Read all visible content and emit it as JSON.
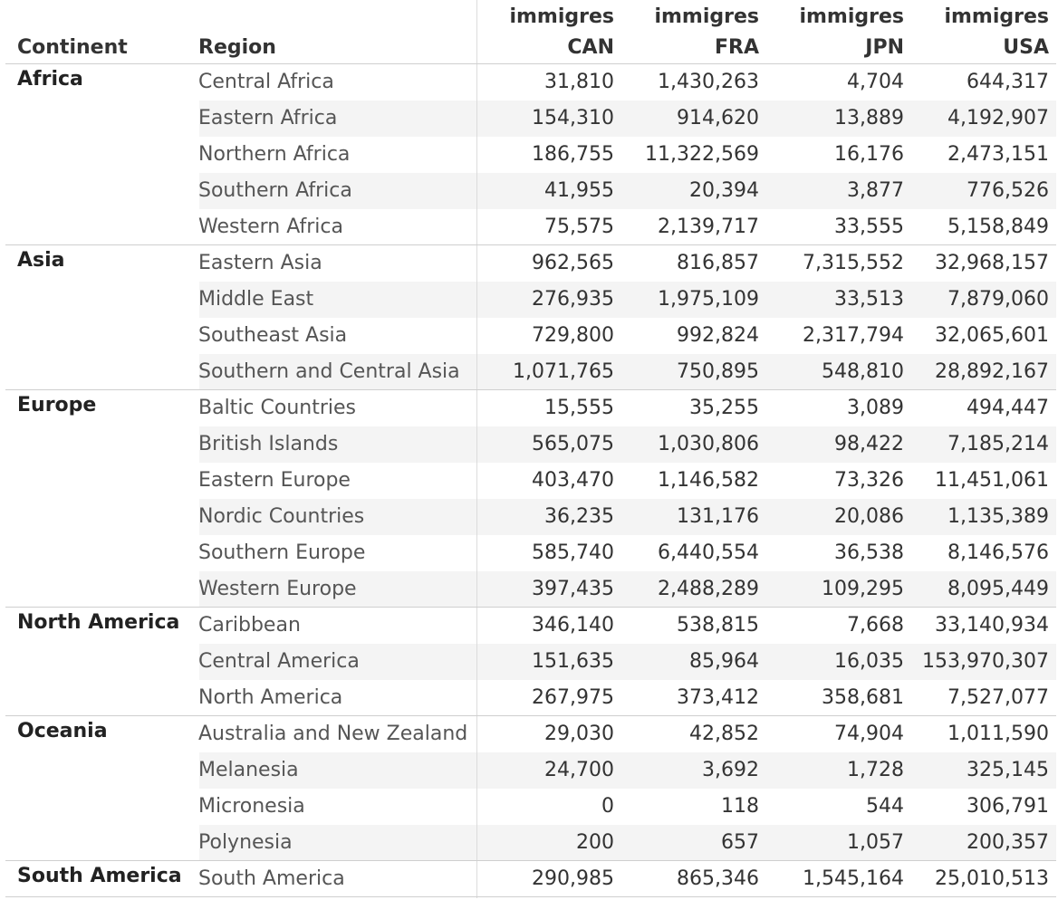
{
  "chart_data": {
    "type": "table",
    "row_headers": [
      "Continent",
      "Region"
    ],
    "columns": [
      {
        "line1": "immigres",
        "line2": "CAN"
      },
      {
        "line1": "immigres",
        "line2": "FRA"
      },
      {
        "line1": "immigres",
        "line2": "JPN"
      },
      {
        "line1": "immigres",
        "line2": "USA"
      }
    ],
    "groups": [
      {
        "continent": "Africa",
        "rows": [
          {
            "region": "Central Africa",
            "values": [
              "31,810",
              "1,430,263",
              "4,704",
              "644,317"
            ]
          },
          {
            "region": "Eastern Africa",
            "values": [
              "154,310",
              "914,620",
              "13,889",
              "4,192,907"
            ]
          },
          {
            "region": "Northern Africa",
            "values": [
              "186,755",
              "11,322,569",
              "16,176",
              "2,473,151"
            ]
          },
          {
            "region": "Southern Africa",
            "values": [
              "41,955",
              "20,394",
              "3,877",
              "776,526"
            ]
          },
          {
            "region": "Western Africa",
            "values": [
              "75,575",
              "2,139,717",
              "33,555",
              "5,158,849"
            ]
          }
        ]
      },
      {
        "continent": "Asia",
        "rows": [
          {
            "region": "Eastern Asia",
            "values": [
              "962,565",
              "816,857",
              "7,315,552",
              "32,968,157"
            ]
          },
          {
            "region": "Middle East",
            "values": [
              "276,935",
              "1,975,109",
              "33,513",
              "7,879,060"
            ]
          },
          {
            "region": "Southeast Asia",
            "values": [
              "729,800",
              "992,824",
              "2,317,794",
              "32,065,601"
            ]
          },
          {
            "region": "Southern and Central Asia",
            "values": [
              "1,071,765",
              "750,895",
              "548,810",
              "28,892,167"
            ]
          }
        ]
      },
      {
        "continent": "Europe",
        "rows": [
          {
            "region": "Baltic Countries",
            "values": [
              "15,555",
              "35,255",
              "3,089",
              "494,447"
            ]
          },
          {
            "region": "British Islands",
            "values": [
              "565,075",
              "1,030,806",
              "98,422",
              "7,185,214"
            ]
          },
          {
            "region": "Eastern Europe",
            "values": [
              "403,470",
              "1,146,582",
              "73,326",
              "11,451,061"
            ]
          },
          {
            "region": "Nordic Countries",
            "values": [
              "36,235",
              "131,176",
              "20,086",
              "1,135,389"
            ]
          },
          {
            "region": "Southern Europe",
            "values": [
              "585,740",
              "6,440,554",
              "36,538",
              "8,146,576"
            ]
          },
          {
            "region": "Western Europe",
            "values": [
              "397,435",
              "2,488,289",
              "109,295",
              "8,095,449"
            ]
          }
        ]
      },
      {
        "continent": "North America",
        "rows": [
          {
            "region": "Caribbean",
            "values": [
              "346,140",
              "538,815",
              "7,668",
              "33,140,934"
            ]
          },
          {
            "region": "Central America",
            "values": [
              "151,635",
              "85,964",
              "16,035",
              "153,970,307"
            ]
          },
          {
            "region": "North America",
            "values": [
              "267,975",
              "373,412",
              "358,681",
              "7,527,077"
            ]
          }
        ]
      },
      {
        "continent": "Oceania",
        "rows": [
          {
            "region": "Australia and New Zealand",
            "values": [
              "29,030",
              "42,852",
              "74,904",
              "1,011,590"
            ]
          },
          {
            "region": "Melanesia",
            "values": [
              "24,700",
              "3,692",
              "1,728",
              "325,145"
            ]
          },
          {
            "region": "Micronesia",
            "values": [
              "0",
              "118",
              "544",
              "306,791"
            ]
          },
          {
            "region": "Polynesia",
            "values": [
              "200",
              "657",
              "1,057",
              "200,357"
            ]
          }
        ]
      },
      {
        "continent": "South America",
        "rows": [
          {
            "region": "South America",
            "values": [
              "290,985",
              "865,346",
              "1,545,164",
              "25,010,513"
            ]
          }
        ]
      }
    ],
    "colors": {
      "band": "#f4f4f4",
      "divider": "#cfcfcf",
      "text": "#333333",
      "region_text": "#555555"
    }
  }
}
